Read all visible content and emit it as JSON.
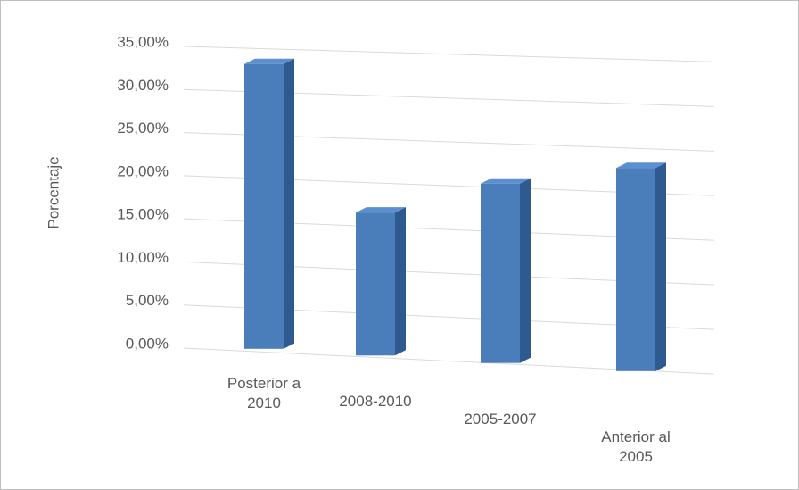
{
  "chart_data": {
    "type": "bar3d",
    "y_axis_label": "Porcentaje",
    "categories": [
      "Posterior a 2010",
      "2008-2010",
      "2005-2007",
      "Anterior al 2005"
    ],
    "values": [
      33.5,
      17,
      21,
      23.5
    ],
    "color": "#4a7ebb",
    "ylim": [
      0,
      35
    ],
    "yticks": [
      {
        "value": 0,
        "label": "0,00%"
      },
      {
        "value": 5,
        "label": "5,00%"
      },
      {
        "value": 10,
        "label": "10,00%"
      },
      {
        "value": 15,
        "label": "15,00%"
      },
      {
        "value": 20,
        "label": "20,00%"
      },
      {
        "value": 25,
        "label": "25,00%"
      },
      {
        "value": 30,
        "label": "30,00%"
      },
      {
        "value": 35,
        "label": "35,00%"
      }
    ],
    "grid": true
  }
}
